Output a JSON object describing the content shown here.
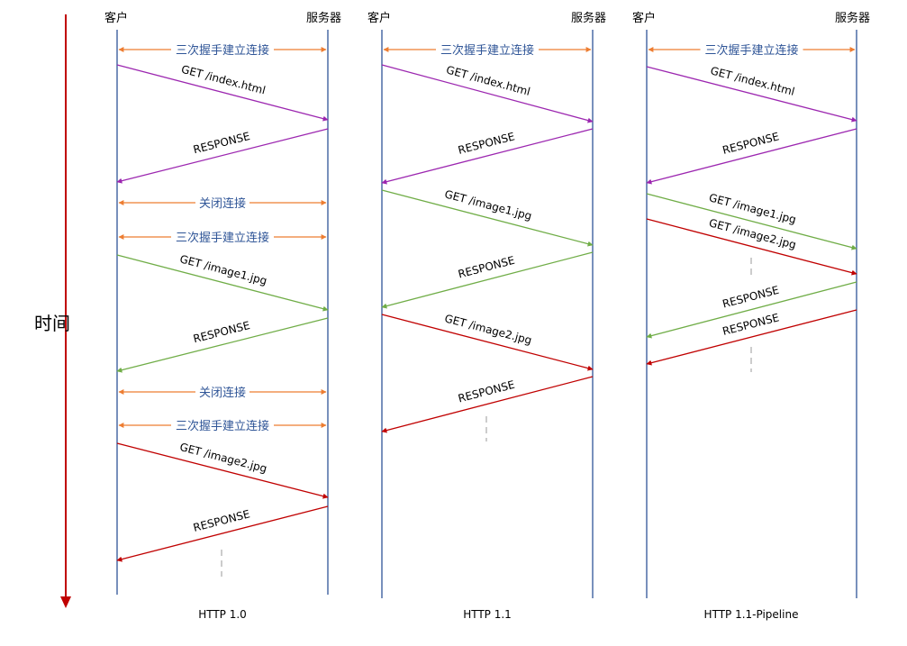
{
  "time_axis": {
    "label": "时间",
    "color": "#c00000"
  },
  "colors": {
    "lifeline": "#2f5597",
    "handshake": "#ed7d31",
    "label_blue": "#2f5597",
    "index": "#9c27b0",
    "image1": "#70ad47",
    "image2": "#c00000",
    "gap": "#999999"
  },
  "panels": [
    {
      "id": "http10",
      "caption": "HTTP 1.0",
      "client_label": "客户",
      "server_label": "服务器",
      "events": [
        {
          "kind": "span",
          "style": "handshake",
          "text": "三次握手建立连接"
        },
        {
          "kind": "msg",
          "dir": "c2s",
          "style": "index",
          "text": "GET /index.html"
        },
        {
          "kind": "msg",
          "dir": "s2c",
          "style": "index",
          "text": "RESPONSE"
        },
        {
          "kind": "span",
          "style": "handshake",
          "text": "关闭连接"
        },
        {
          "kind": "span",
          "style": "handshake",
          "text": "三次握手建立连接"
        },
        {
          "kind": "msg",
          "dir": "c2s",
          "style": "image1",
          "text": "GET /image1.jpg"
        },
        {
          "kind": "msg",
          "dir": "s2c",
          "style": "image1",
          "text": "RESPONSE"
        },
        {
          "kind": "span",
          "style": "handshake",
          "text": "关闭连接"
        },
        {
          "kind": "span",
          "style": "handshake",
          "text": "三次握手建立连接"
        },
        {
          "kind": "msg",
          "dir": "c2s",
          "style": "image2",
          "text": "GET /image2.jpg"
        },
        {
          "kind": "msg",
          "dir": "s2c",
          "style": "image2",
          "text": "RESPONSE"
        },
        {
          "kind": "gap"
        }
      ]
    },
    {
      "id": "http11",
      "caption": "HTTP 1.1",
      "client_label": "客户",
      "server_label": "服务器",
      "events": [
        {
          "kind": "span",
          "style": "handshake",
          "text": "三次握手建立连接"
        },
        {
          "kind": "msg",
          "dir": "c2s",
          "style": "index",
          "text": "GET /index.html"
        },
        {
          "kind": "msg",
          "dir": "s2c",
          "style": "index",
          "text": "RESPONSE"
        },
        {
          "kind": "msg",
          "dir": "c2s",
          "style": "image1",
          "text": "GET /image1.jpg"
        },
        {
          "kind": "msg",
          "dir": "s2c",
          "style": "image1",
          "text": "RESPONSE"
        },
        {
          "kind": "msg",
          "dir": "c2s",
          "style": "image2",
          "text": "GET /image2.jpg"
        },
        {
          "kind": "msg",
          "dir": "s2c",
          "style": "image2",
          "text": "RESPONSE"
        },
        {
          "kind": "gap"
        }
      ]
    },
    {
      "id": "http11-pipeline",
      "caption": "HTTP 1.1-Pipeline",
      "client_label": "客户",
      "server_label": "服务器",
      "events": [
        {
          "kind": "span",
          "style": "handshake",
          "text": "三次握手建立连接"
        },
        {
          "kind": "msg",
          "dir": "c2s",
          "style": "index",
          "text": "GET /index.html"
        },
        {
          "kind": "msg",
          "dir": "s2c",
          "style": "index",
          "text": "RESPONSE"
        },
        {
          "kind": "msg",
          "dir": "c2s",
          "style": "image1",
          "text": "GET /image1.jpg"
        },
        {
          "kind": "msg",
          "dir": "c2s",
          "style": "image2",
          "text": "GET /image2.jpg"
        },
        {
          "kind": "gap"
        },
        {
          "kind": "msg",
          "dir": "s2c",
          "style": "image1",
          "text": "RESPONSE"
        },
        {
          "kind": "msg",
          "dir": "s2c",
          "style": "image2",
          "text": "RESPONSE"
        },
        {
          "kind": "gap"
        }
      ]
    }
  ]
}
